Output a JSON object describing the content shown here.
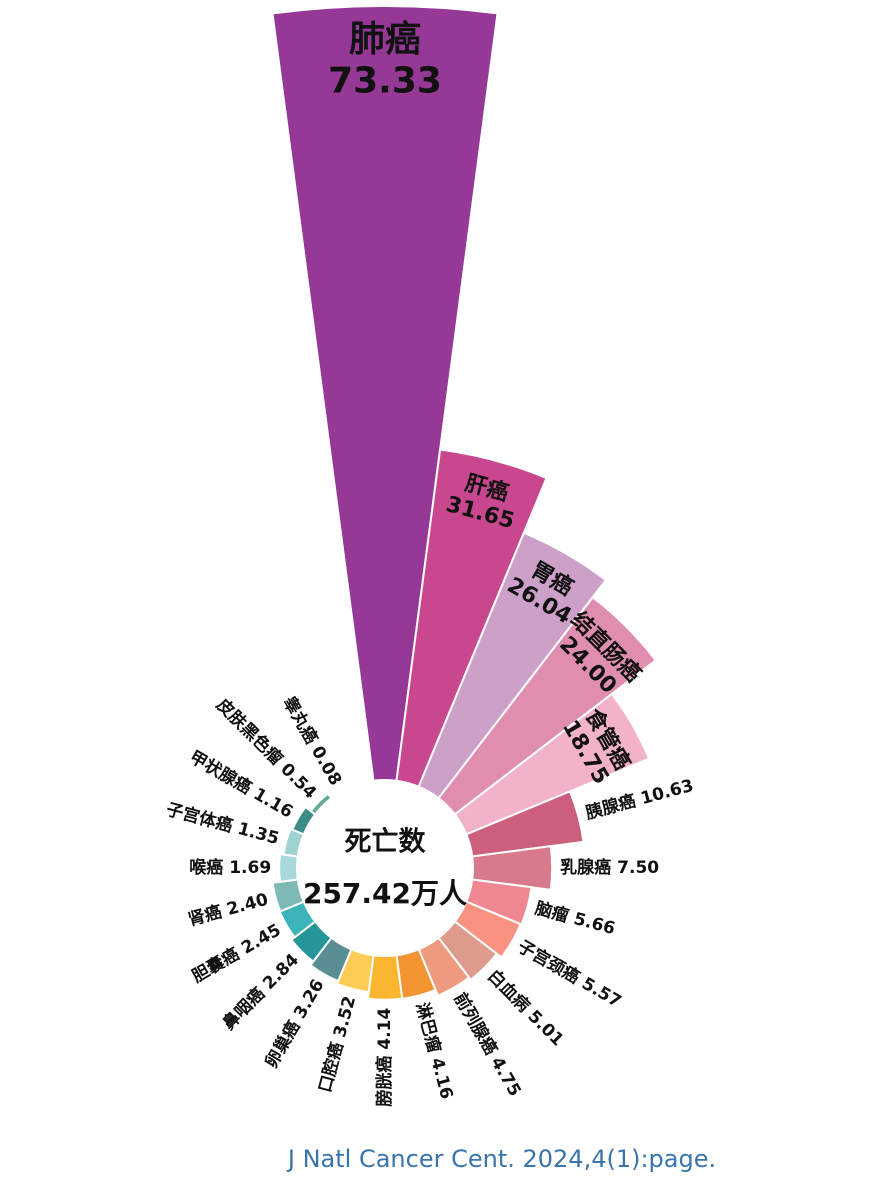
{
  "chart_data": {
    "type": "radial-bar",
    "categories": [
      "肺癌",
      "肝癌",
      "胃癌",
      "结直肠癌",
      "食管癌",
      "胰腺癌",
      "乳腺癌",
      "脑瘤",
      "子宫颈癌",
      "白血病",
      "前列腺癌",
      "淋巴瘤",
      "膀胱癌",
      "口腔癌",
      "卵巢癌",
      "鼻咽癌",
      "胆囊癌",
      "肾癌",
      "喉癌",
      "子宫体癌",
      "甲状腺癌",
      "皮肤黑色瘤",
      "睾丸癌"
    ],
    "values": [
      73.33,
      31.65,
      26.04,
      24.0,
      18.75,
      10.63,
      7.5,
      5.66,
      5.57,
      5.01,
      4.75,
      4.16,
      4.14,
      3.52,
      3.26,
      2.84,
      2.45,
      2.4,
      1.69,
      1.35,
      1.16,
      0.54,
      0.08
    ],
    "value_labels": [
      "73.33",
      "31.65",
      "26.04",
      "24.00",
      "18.75",
      "10.63",
      "7.50",
      "5.66",
      "5.57",
      "5.01",
      "4.75",
      "4.16",
      "4.14",
      "3.52",
      "3.26",
      "2.84",
      "2.45",
      "2.40",
      "1.69",
      "1.35",
      "1.16",
      "0.54",
      "0.08"
    ],
    "colors": [
      "#953896",
      "#c9478e",
      "#cca0c8",
      "#e08eb0",
      "#f2b2ca",
      "#cc5f7d",
      "#d87a8b",
      "#f08790",
      "#f99280",
      "#de9a8a",
      "#ef9a7e",
      "#f39433",
      "#fcb52e",
      "#fecb55",
      "#5b8d95",
      "#249699",
      "#3db4b9",
      "#7dbab5",
      "#a8d8da",
      "#9fd3d2",
      "#3e8a86",
      "#5fad8e",
      "#4cb87a"
    ],
    "center_title": "死亡数",
    "center_total": "257.42万人",
    "source": "J Natl Cancer Cent. 2024,4(1):page."
  }
}
